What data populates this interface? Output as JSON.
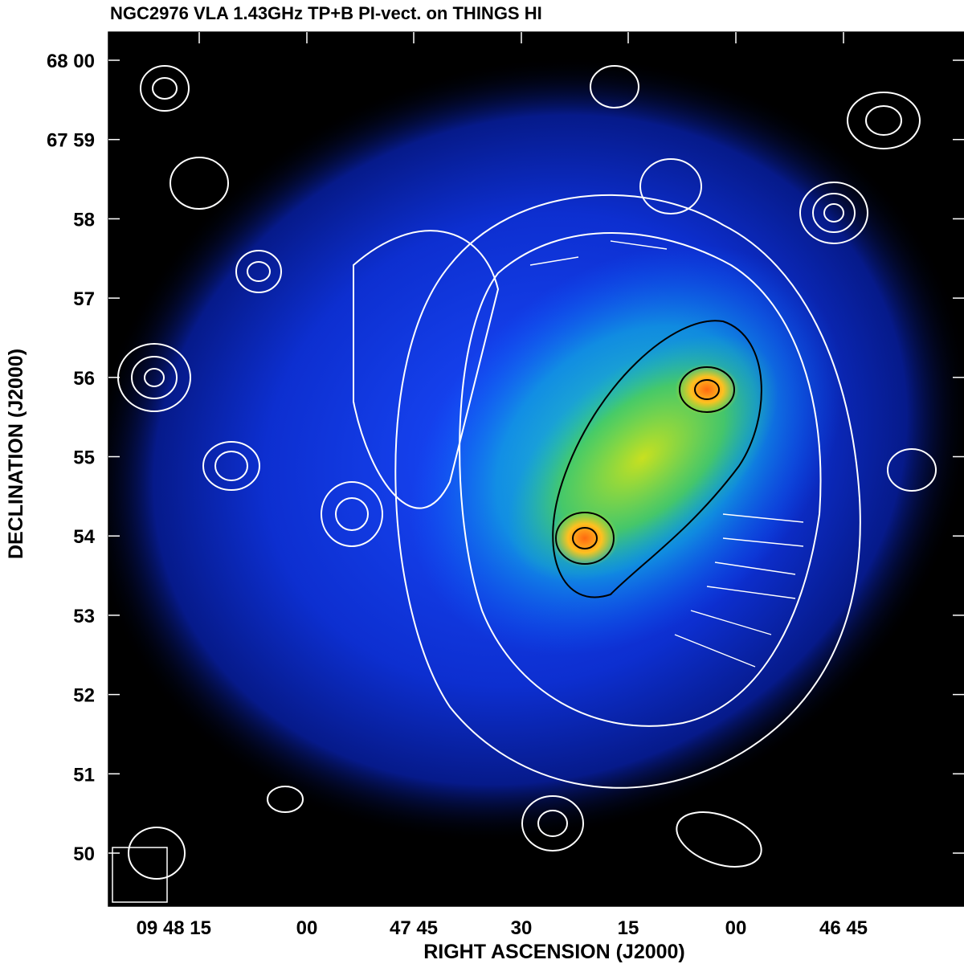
{
  "header": {
    "title": "NGC2976 VLA 1.43GHz TP+B PI-vect. on THINGS HI"
  },
  "x_axis": {
    "label": "RIGHT ASCENSION (J2000)",
    "ticks": [
      "09 48 15",
      "00",
      "47 45",
      "30",
      "15",
      "00",
      "46 45"
    ]
  },
  "y_axis": {
    "label": "DECLINATION (J2000)",
    "ticks": [
      "68 00",
      "67 59",
      "58",
      "57",
      "56",
      "55",
      "54",
      "53",
      "52",
      "51",
      "50"
    ]
  }
}
